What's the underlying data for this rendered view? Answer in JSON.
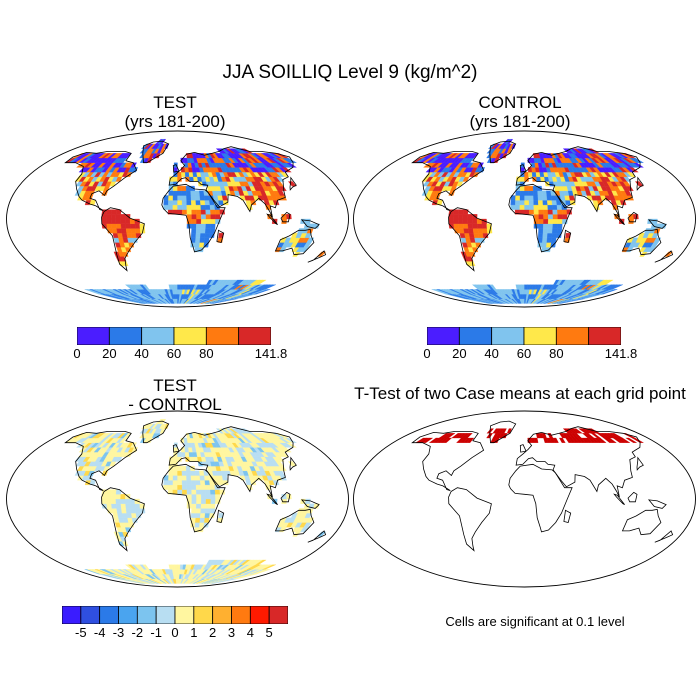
{
  "title": "JJA SOILLIQ Level 9 (kg/m^2)",
  "panels": {
    "test": {
      "title_line1": "TEST",
      "title_line2": "(yrs 181-200)"
    },
    "control": {
      "title_line1": "CONTROL",
      "title_line2": "(yrs 181-200)"
    },
    "diff": {
      "title_line1": "TEST",
      "title_line2": "- CONTROL"
    },
    "ttest": {
      "title": "T-Test of two Case means at each grid point",
      "note": "Cells are significant at 0.1 level"
    }
  },
  "colorbar_main": {
    "colors": [
      "#4b1dff",
      "#2b7ae8",
      "#80c4ee",
      "#ffe84a",
      "#ff7a10",
      "#d82828"
    ],
    "labels": [
      "0",
      "20",
      "40",
      "60",
      "80",
      "141.8"
    ]
  },
  "colorbar_diff": {
    "colors": [
      "#3a1cff",
      "#2f4fe0",
      "#2b7ae8",
      "#4aa4ef",
      "#7cc4ef",
      "#b8def2",
      "#fff6a0",
      "#ffd84a",
      "#ffb030",
      "#ff7a10",
      "#ff1a00",
      "#d82828"
    ],
    "labels": [
      "-5",
      "-4",
      "-3",
      "-2",
      "-1",
      "0",
      "1",
      "2",
      "3",
      "4",
      "5"
    ]
  },
  "colors": {
    "ttest_significant": "#cc0000",
    "coast": "#000000"
  }
}
